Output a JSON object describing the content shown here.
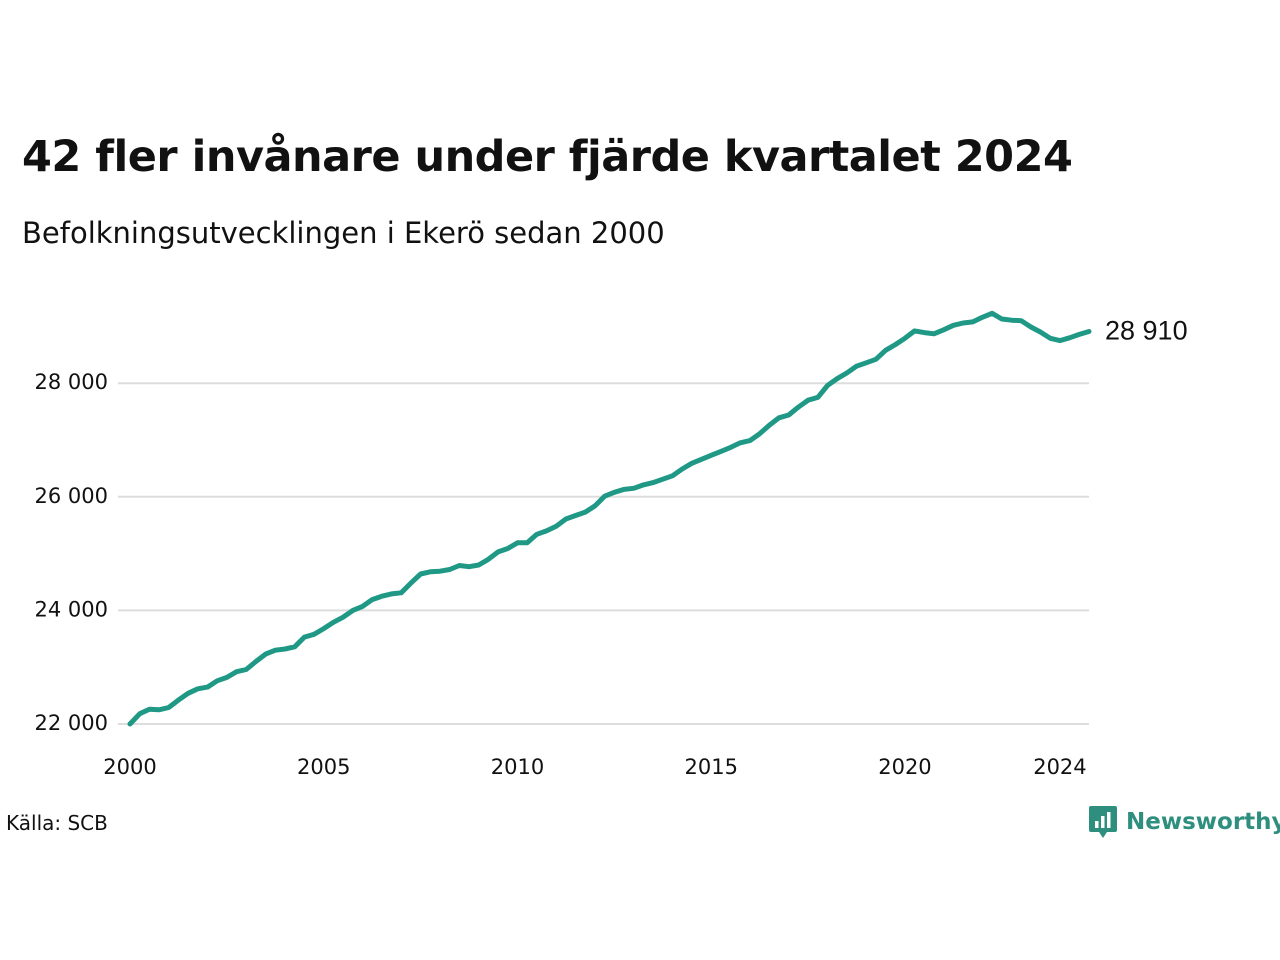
{
  "title": "42 fler invånare under fjärde kvartalet 2024",
  "subtitle": "Befolkningsutvecklingen i Ekerö sedan 2000",
  "source": "Källa: SCB",
  "brand": {
    "name": "Newsworthy",
    "icon": "newsworthy-logo-icon",
    "color": "#2f8f7f"
  },
  "colors": {
    "line": "#1f9985",
    "grid": "#dddddd",
    "text": "#111111"
  },
  "chart_data": {
    "type": "line",
    "xlim": [
      2000,
      2024.75
    ],
    "ylim": [
      22000,
      29500
    ],
    "xticks": [
      2000,
      2005,
      2010,
      2015,
      2020,
      2024
    ],
    "yticks": [
      22000,
      24000,
      26000,
      28000
    ],
    "y_tick_labels": [
      "22 000",
      "24 000",
      "26 000",
      "28 000"
    ],
    "grid": true,
    "end_label": "28 910",
    "series": [
      {
        "x": [
          2000,
          2000.25,
          2000.5,
          2000.75,
          2001,
          2001.25,
          2001.5,
          2001.75,
          2002,
          2002.25,
          2002.5,
          2002.75,
          2003,
          2003.25,
          2003.5,
          2003.75,
          2004,
          2004.25,
          2004.5,
          2004.75,
          2005,
          2005.25,
          2005.5,
          2005.75,
          2006,
          2006.25,
          2006.5,
          2006.75,
          2007,
          2007.25,
          2007.5,
          2007.75,
          2008,
          2008.25,
          2008.5,
          2008.75,
          2009,
          2009.25,
          2009.5,
          2009.75,
          2010,
          2010.25,
          2010.5,
          2010.75,
          2011,
          2011.25,
          2011.5,
          2011.75,
          2012,
          2012.25,
          2012.5,
          2012.75,
          2013,
          2013.25,
          2013.5,
          2013.75,
          2014,
          2014.25,
          2014.5,
          2014.75,
          2015,
          2015.25,
          2015.5,
          2015.75,
          2016,
          2016.25,
          2016.5,
          2016.75,
          2017,
          2017.25,
          2017.5,
          2017.75,
          2018,
          2018.25,
          2018.5,
          2018.75,
          2019,
          2019.25,
          2019.5,
          2019.75,
          2020,
          2020.25,
          2020.5,
          2020.75,
          2021,
          2021.25,
          2021.5,
          2021.75,
          2022,
          2022.25,
          2022.5,
          2022.75,
          2023,
          2023.25,
          2023.5,
          2023.75,
          2024,
          2024.25,
          2024.5,
          2024.75
        ],
        "values": [
          22000,
          22180,
          22260,
          22250,
          22290,
          22420,
          22540,
          22620,
          22650,
          22760,
          22820,
          22920,
          22960,
          23100,
          23230,
          23300,
          23320,
          23360,
          23530,
          23580,
          23680,
          23790,
          23880,
          24000,
          24070,
          24190,
          24250,
          24290,
          24310,
          24480,
          24640,
          24680,
          24690,
          24720,
          24790,
          24770,
          24800,
          24900,
          25030,
          25090,
          25190,
          25190,
          25340,
          25400,
          25480,
          25610,
          25670,
          25730,
          25840,
          26010,
          26080,
          26130,
          26150,
          26210,
          26250,
          26310,
          26370,
          26490,
          26590,
          26660,
          26730,
          26800,
          26870,
          26950,
          26990,
          27110,
          27260,
          27390,
          27440,
          27580,
          27700,
          27750,
          27960,
          28080,
          28180,
          28300,
          28360,
          28420,
          28580,
          28680,
          28790,
          28920,
          28890,
          28870,
          28940,
          29020,
          29060,
          29080,
          29160,
          29230,
          29130,
          29110,
          29100,
          28990,
          28900,
          28790,
          28750,
          28800,
          28860,
          28910
        ]
      }
    ]
  }
}
